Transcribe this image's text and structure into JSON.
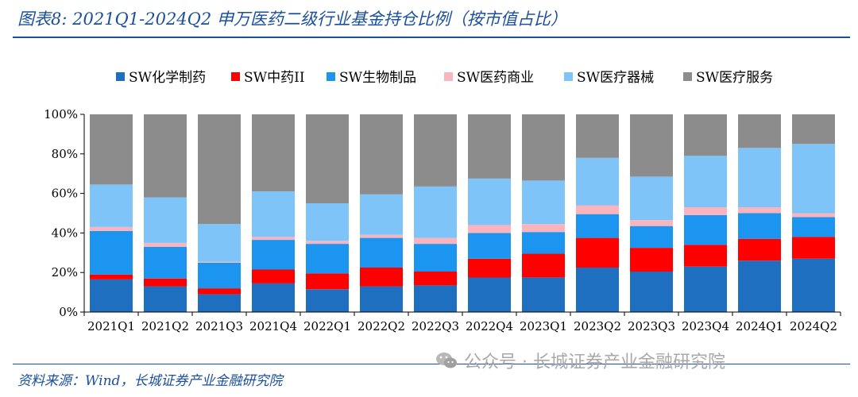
{
  "figure": {
    "title": "图表8:  2021Q1-2024Q2 申万医药二级行业基金持仓比例（按市值占比）",
    "source": "资料来源：Wind，长城证券产业金融研究院",
    "watermark": "公众号 · 长城证券产业金融研究院"
  },
  "chart_data": {
    "type": "bar",
    "stacked": true,
    "categories": [
      "2021Q1",
      "2021Q2",
      "2021Q3",
      "2021Q4",
      "2022Q1",
      "2022Q2",
      "2022Q3",
      "2022Q4",
      "2023Q1",
      "2023Q2",
      "2023Q3",
      "2023Q4",
      "2024Q1",
      "2024Q2"
    ],
    "series": [
      {
        "name": "SW化学制药",
        "color": "#1f6fc0",
        "values": [
          16.5,
          13,
          9,
          14.5,
          11.5,
          13,
          13.5,
          17.5,
          17.5,
          22.5,
          20.5,
          23,
          26,
          27
        ]
      },
      {
        "name": "SW中药II",
        "color": "#ff0000",
        "values": [
          2.5,
          4,
          3,
          7,
          8,
          9.5,
          7,
          9.5,
          12,
          15,
          12,
          11,
          11,
          11
        ]
      },
      {
        "name": "SW生物制品",
        "color": "#1c95f0",
        "values": [
          22,
          16,
          13,
          15,
          15,
          15,
          14,
          13,
          11,
          12,
          11,
          15,
          13,
          10
        ]
      },
      {
        "name": "SW医药商业",
        "color": "#f9b4bd",
        "values": [
          2,
          2,
          0.5,
          1.5,
          1.5,
          1.5,
          3,
          4,
          4,
          4.5,
          3,
          4,
          3,
          2
        ]
      },
      {
        "name": "SW医疗器械",
        "color": "#7fc4f8",
        "values": [
          21.5,
          23,
          19,
          23,
          19,
          20.5,
          26,
          23.5,
          22,
          24,
          22,
          26,
          30,
          35
        ]
      },
      {
        "name": "SW医疗服务",
        "color": "#8c8c8c",
        "values": [
          35.5,
          42,
          55.5,
          39,
          45,
          40.5,
          36.5,
          32.5,
          33.5,
          22,
          31.5,
          21,
          17,
          15
        ]
      }
    ],
    "ylim": [
      0,
      100
    ],
    "yticks": [
      "0%",
      "20%",
      "40%",
      "60%",
      "80%",
      "100%"
    ],
    "legend_position": "top",
    "grid": false
  }
}
